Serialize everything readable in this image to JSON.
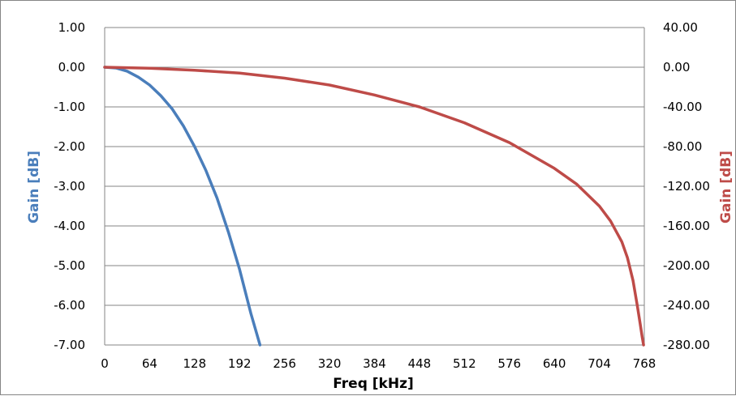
{
  "chart_data": {
    "type": "line",
    "xlabel": "Freq [kHz]",
    "ylabel_left": "Gain [dB]",
    "ylabel_right": "Gain [dB]",
    "x_ticks": [
      "0",
      "64",
      "128",
      "192",
      "256",
      "320",
      "384",
      "448",
      "512",
      "576",
      "640",
      "704",
      "768"
    ],
    "xlim": [
      0,
      768
    ],
    "y_left": {
      "lim": [
        -7,
        1
      ],
      "ticks": [
        "1.00",
        "0.00",
        "-1.00",
        "-2.00",
        "-3.00",
        "-4.00",
        "-5.00",
        "-6.00",
        "-7.00"
      ]
    },
    "y_right": {
      "lim": [
        -280,
        40
      ],
      "ticks": [
        "40.00",
        "0.00",
        "-40.00",
        "-80.00",
        "-120.00",
        "-160.00",
        "-200.00",
        "-240.00",
        "-280.00"
      ]
    },
    "grid": true,
    "series": [
      {
        "axis": "left",
        "color": "#4a7ebb",
        "x": [
          0,
          16,
          32,
          48,
          64,
          80,
          96,
          112,
          128,
          144,
          160,
          176,
          192,
          208,
          221
        ],
        "y": [
          0,
          -0.02,
          -0.1,
          -0.25,
          -0.45,
          -0.72,
          -1.05,
          -1.48,
          -2.0,
          -2.6,
          -3.3,
          -4.15,
          -5.1,
          -6.2,
          -7.0
        ]
      },
      {
        "axis": "right",
        "color": "#be4b48",
        "x": [
          0,
          64,
          128,
          192,
          256,
          320,
          384,
          448,
          512,
          576,
          640,
          672,
          704,
          720,
          736,
          744,
          752,
          758,
          762,
          765,
          767
        ],
        "y": [
          0,
          -1,
          -3,
          -6,
          -11,
          -18,
          -28,
          -40,
          -56,
          -76,
          -102,
          -118,
          -140,
          -155,
          -176,
          -192,
          -215,
          -240,
          -258,
          -272,
          -280
        ]
      }
    ]
  }
}
